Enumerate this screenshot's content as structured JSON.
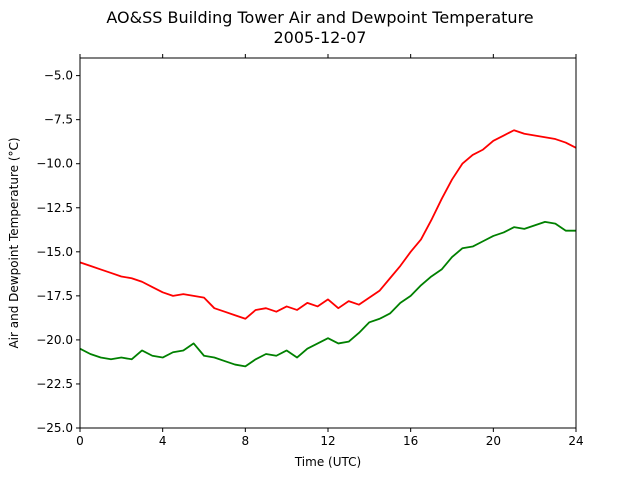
{
  "chart_data": {
    "type": "line",
    "title_line1": "AO&SS Building Tower Air and Dewpoint Temperature",
    "title_line2": "2005-12-07",
    "xlabel": "Time (UTC)",
    "ylabel": "Air and Dewpoint Temperature (°C)",
    "xlim": [
      0,
      24
    ],
    "ylim": [
      -25.0,
      -4.0
    ],
    "xticks": [
      0,
      4,
      8,
      12,
      16,
      20,
      24
    ],
    "yticks": [
      -25.0,
      -22.5,
      -20.0,
      -17.5,
      -15.0,
      -12.5,
      -10.0,
      -7.5,
      -5.0
    ],
    "ytick_labels": [
      "−25.0",
      "−22.5",
      "−20.0",
      "−17.5",
      "−15.0",
      "−12.5",
      "−10.0",
      "−7.5",
      "−5.0"
    ],
    "grid": false,
    "series": [
      {
        "color": "#ff0000",
        "x": [
          0,
          0.5,
          1,
          1.5,
          2,
          2.5,
          3,
          3.5,
          4,
          4.5,
          5,
          5.5,
          6,
          6.5,
          7,
          7.5,
          8,
          8.5,
          9,
          9.5,
          10,
          10.5,
          11,
          11.5,
          12,
          12.5,
          13,
          13.5,
          14,
          14.5,
          15,
          15.5,
          16,
          16.5,
          17,
          17.5,
          18,
          18.5,
          19,
          19.5,
          20,
          20.5,
          21,
          21.5,
          22,
          22.5,
          23,
          23.5,
          24
        ],
        "y": [
          -15.6,
          -15.8,
          -16.0,
          -16.2,
          -16.4,
          -16.5,
          -16.7,
          -17.0,
          -17.3,
          -17.5,
          -17.4,
          -17.5,
          -17.6,
          -18.2,
          -18.4,
          -18.6,
          -18.8,
          -18.3,
          -18.2,
          -18.4,
          -18.1,
          -18.3,
          -17.9,
          -18.1,
          -17.7,
          -18.2,
          -17.8,
          -18.0,
          -17.6,
          -17.2,
          -16.5,
          -15.8,
          -15.0,
          -14.3,
          -13.2,
          -12.0,
          -10.9,
          -10.0,
          -9.5,
          -9.2,
          -8.7,
          -8.4,
          -8.1,
          -8.3,
          -8.4,
          -8.5,
          -8.6,
          -8.8,
          -9.1
        ]
      },
      {
        "color": "#008000",
        "x": [
          0,
          0.5,
          1,
          1.5,
          2,
          2.5,
          3,
          3.5,
          4,
          4.5,
          5,
          5.5,
          6,
          6.5,
          7,
          7.5,
          8,
          8.5,
          9,
          9.5,
          10,
          10.5,
          11,
          11.5,
          12,
          12.5,
          13,
          13.5,
          14,
          14.5,
          15,
          15.5,
          16,
          16.5,
          17,
          17.5,
          18,
          18.5,
          19,
          19.5,
          20,
          20.5,
          21,
          21.5,
          22,
          22.5,
          23,
          23.5,
          24
        ],
        "y": [
          -20.5,
          -20.8,
          -21.0,
          -21.1,
          -21.0,
          -21.1,
          -20.6,
          -20.9,
          -21.0,
          -20.7,
          -20.6,
          -20.2,
          -20.9,
          -21.0,
          -21.2,
          -21.4,
          -21.5,
          -21.1,
          -20.8,
          -20.9,
          -20.6,
          -21.0,
          -20.5,
          -20.2,
          -19.9,
          -20.2,
          -20.1,
          -19.6,
          -19.0,
          -18.8,
          -18.5,
          -17.9,
          -17.5,
          -16.9,
          -16.4,
          -16.0,
          -15.3,
          -14.8,
          -14.7,
          -14.4,
          -14.1,
          -13.9,
          -13.6,
          -13.7,
          -13.5,
          -13.3,
          -13.4,
          -13.8,
          -13.8
        ]
      }
    ]
  }
}
